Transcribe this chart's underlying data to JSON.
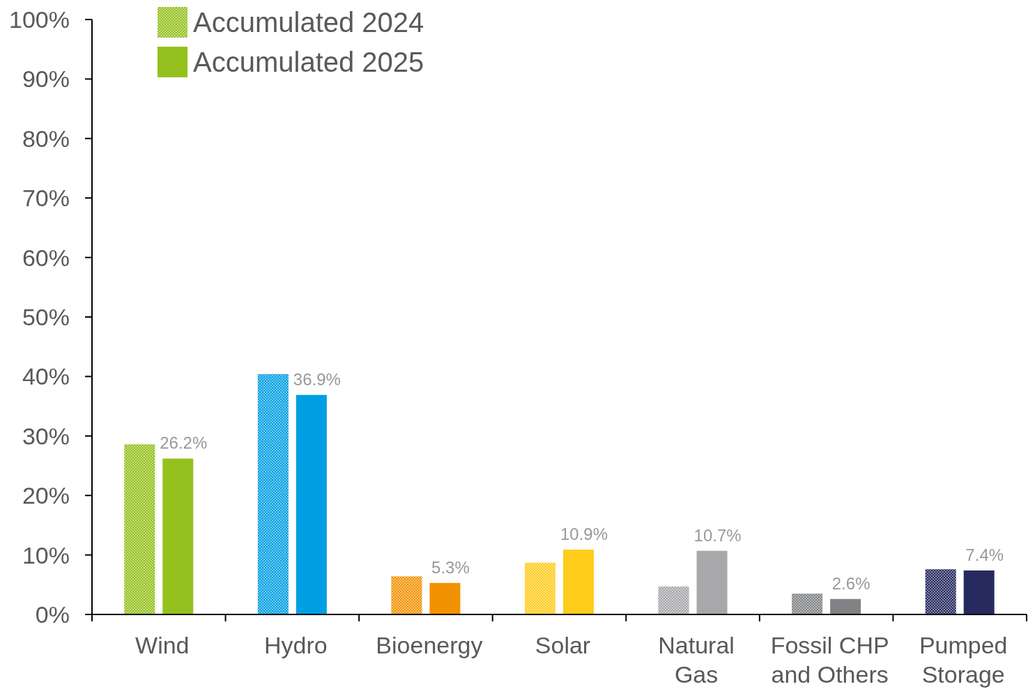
{
  "chart_data": {
    "type": "bar",
    "categories": [
      "Wind",
      "Hydro",
      "Bioenergy",
      "Solar",
      "Natural Gas",
      "Fossil CHP and Others",
      "Pumped Storage"
    ],
    "series": [
      {
        "name": "Accumulated 2024",
        "color": "#95c11f",
        "colors": [
          "#95c11f",
          "#009fe3",
          "#f39200",
          "#ffcc1a",
          "#a8a8ab",
          "#818285",
          "#262a5e"
        ],
        "values": [
          28.6,
          40.4,
          6.4,
          8.7,
          4.7,
          3.5,
          7.6
        ]
      },
      {
        "name": "Accumulated 2025",
        "color": "#95c11f",
        "colors": [
          "#95c11f",
          "#009fe3",
          "#f39200",
          "#ffcc1a",
          "#a8a8ab",
          "#818285",
          "#262a5e"
        ],
        "values": [
          26.2,
          36.9,
          5.3,
          10.9,
          10.7,
          2.6,
          7.4
        ],
        "value_labels": [
          "26.2%",
          "36.9%",
          "5.3%",
          "10.9%",
          "10.7%",
          "2.6%",
          "7.4%"
        ]
      }
    ],
    "ylim": [
      0,
      100
    ],
    "yticks": [
      {
        "value": 0,
        "label": "0%"
      },
      {
        "value": 10,
        "label": "10%"
      },
      {
        "value": 20,
        "label": "20%"
      },
      {
        "value": 30,
        "label": "30%"
      },
      {
        "value": 40,
        "label": "40%"
      },
      {
        "value": 50,
        "label": "50%"
      },
      {
        "value": 60,
        "label": "60%"
      },
      {
        "value": 70,
        "label": "70%"
      },
      {
        "value": 80,
        "label": "80%"
      },
      {
        "value": 90,
        "label": "90%"
      },
      {
        "value": 100,
        "label": "100%"
      }
    ],
    "grid": false,
    "legend": "top left"
  }
}
